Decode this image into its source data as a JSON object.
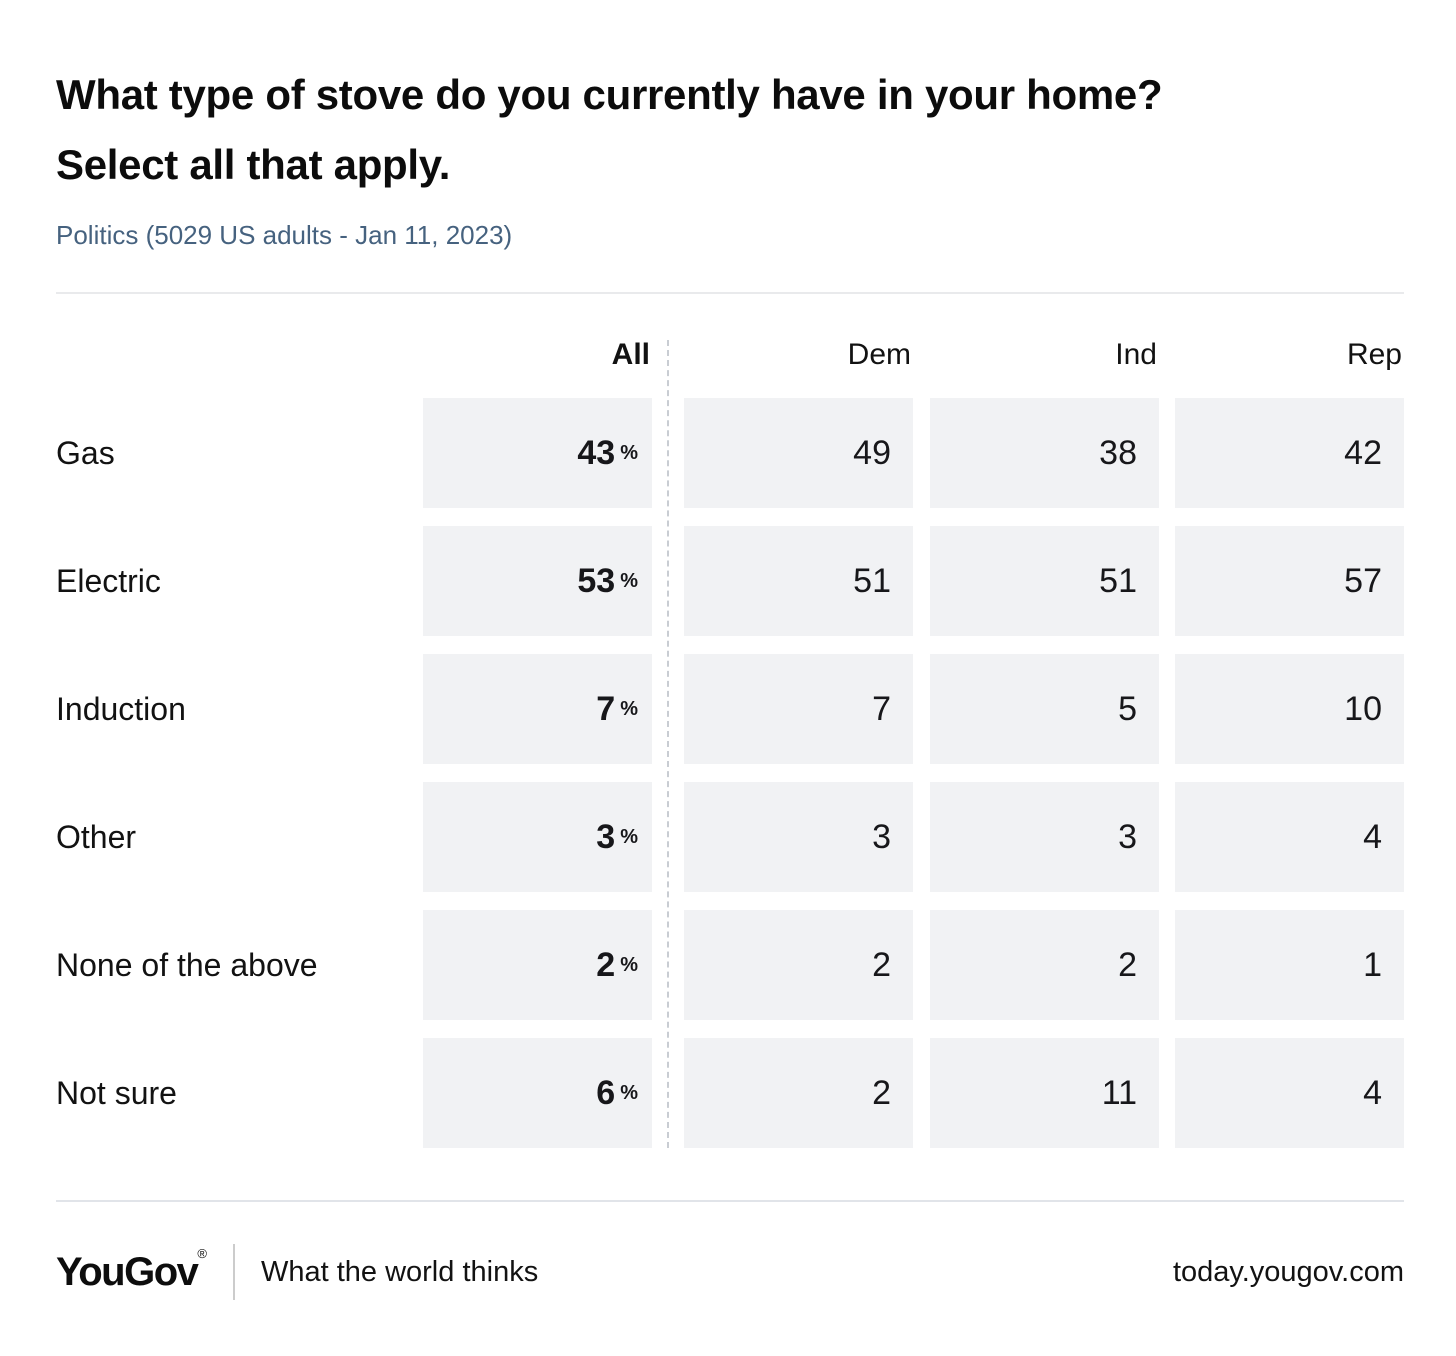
{
  "header": {
    "title_line1": "What type of stove do you currently have in your home?",
    "title_line2": "Select all that apply.",
    "subtitle": "Politics (5029 US adults - Jan 11, 2023)"
  },
  "table": {
    "columns": [
      "All",
      "Dem",
      "Ind",
      "Rep"
    ],
    "percent_symbol": "%",
    "rows": [
      {
        "label": "Gas",
        "all": "43",
        "dem": "49",
        "ind": "38",
        "rep": "42"
      },
      {
        "label": "Electric",
        "all": "53",
        "dem": "51",
        "ind": "51",
        "rep": "57"
      },
      {
        "label": "Induction",
        "all": "7",
        "dem": "7",
        "ind": "5",
        "rep": "10"
      },
      {
        "label": "Other",
        "all": "3",
        "dem": "3",
        "ind": "3",
        "rep": "4"
      },
      {
        "label": "None of the above",
        "all": "2",
        "dem": "2",
        "ind": "2",
        "rep": "1"
      },
      {
        "label": "Not sure",
        "all": "6",
        "dem": "2",
        "ind": "11",
        "rep": "4"
      }
    ]
  },
  "footer": {
    "logo": "YouGov",
    "registered_mark": "®",
    "tagline": "What the world thinks",
    "site": "today.yougov.com"
  },
  "colors": {
    "subtitle_blue": "#46627f",
    "cell_background": "#f1f2f4",
    "text": "#121212",
    "dashed_line": "#c9cdd3",
    "divider": "#e9eaec"
  },
  "chart_data": {
    "type": "table",
    "title": "What type of stove do you currently have in your home? Select all that apply.",
    "subtitle": "Politics (5029 US adults - Jan 11, 2023)",
    "categories": [
      "Gas",
      "Electric",
      "Induction",
      "Other",
      "None of the above",
      "Not sure"
    ],
    "series": [
      {
        "name": "All",
        "unit": "%",
        "values": [
          43,
          53,
          7,
          3,
          2,
          6
        ]
      },
      {
        "name": "Dem",
        "values": [
          49,
          51,
          7,
          3,
          2,
          2
        ]
      },
      {
        "name": "Ind",
        "values": [
          38,
          51,
          5,
          3,
          2,
          11
        ]
      },
      {
        "name": "Rep",
        "values": [
          42,
          57,
          10,
          4,
          1,
          4
        ]
      }
    ],
    "legend_position": "top",
    "grid": false
  }
}
